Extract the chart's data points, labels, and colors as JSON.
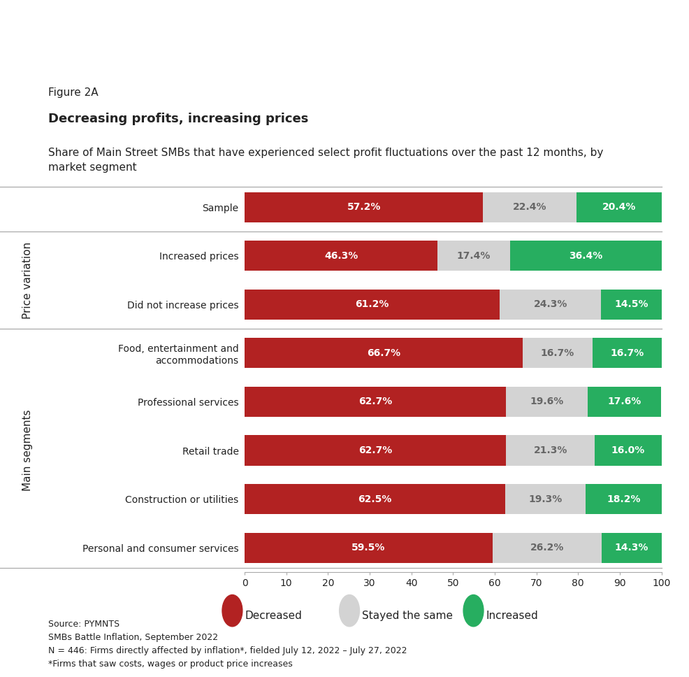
{
  "figure_label": "Figure 2A",
  "title": "Decreasing profits, increasing prices",
  "subtitle": "Share of Main Street SMBs that have experienced select profit fluctuations over the past 12 months, by\nmarket segment",
  "categories": [
    "Sample",
    "Increased prices",
    "Did not increase prices",
    "Food, entertainment and\naccommodations",
    "Professional services",
    "Retail trade",
    "Construction or utilities",
    "Personal and consumer services"
  ],
  "decreased": [
    57.2,
    46.3,
    61.2,
    66.7,
    62.7,
    62.7,
    62.5,
    59.5
  ],
  "stayed_same": [
    22.4,
    17.4,
    24.3,
    16.7,
    19.6,
    21.3,
    19.3,
    26.2
  ],
  "increased": [
    20.4,
    36.4,
    14.5,
    16.7,
    17.6,
    16.0,
    18.2,
    14.3
  ],
  "color_decreased": "#b22222",
  "color_stayed": "#d3d3d3",
  "color_increased": "#27ae60",
  "bar_height": 0.62,
  "xlim": [
    0,
    100
  ],
  "xticks": [
    0,
    10,
    20,
    30,
    40,
    50,
    60,
    70,
    80,
    90,
    100
  ],
  "section_price_variation_rows": [
    1,
    2
  ],
  "section_main_segments_rows": [
    3,
    4,
    5,
    6,
    7
  ],
  "source_lines": [
    "Source: PYMNTS",
    "SMBs Battle Inflation, September 2022",
    "N = 446: Firms directly affected by inflation*, fielded July 12, 2022 – July 27, 2022",
    "*Firms that saw costs, wages or product price increases"
  ],
  "legend_labels": [
    "Decreased",
    "Stayed the same",
    "Increased"
  ],
  "background_color": "#ffffff",
  "text_color": "#222222",
  "font_size_figure_label": 11,
  "font_size_title": 13,
  "font_size_subtitle": 11,
  "font_size_bars": 10,
  "font_size_ticks": 10,
  "font_size_legend": 11,
  "font_size_source": 9,
  "font_size_section": 11,
  "font_size_ylabels": 10
}
